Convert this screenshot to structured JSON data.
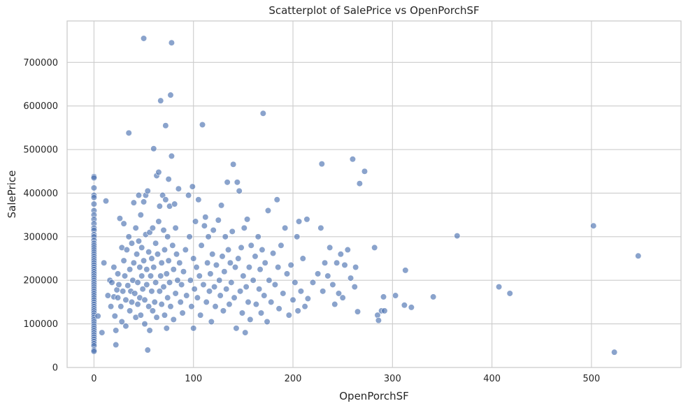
{
  "chart_data": {
    "type": "scatter",
    "title": "Scatterplot of SalePrice vs OpenPorchSF",
    "xlabel": "OpenPorchSF",
    "ylabel": "SalePrice",
    "xlim": [
      -27,
      590
    ],
    "ylim": [
      0,
      795000
    ],
    "xticks": [
      0,
      100,
      200,
      300,
      400,
      500
    ],
    "yticks": [
      0,
      100000,
      200000,
      300000,
      400000,
      500000,
      600000,
      700000
    ],
    "grid": true,
    "legend": "none",
    "color": "#4c72b0",
    "points": [
      [
        0,
        438000
      ],
      [
        0,
        435000
      ],
      [
        0,
        412000
      ],
      [
        0,
        395000
      ],
      [
        0,
        390000
      ],
      [
        0,
        375000
      ],
      [
        0,
        360000
      ],
      [
        0,
        350000
      ],
      [
        0,
        340000
      ],
      [
        0,
        330000
      ],
      [
        0,
        320000
      ],
      [
        0,
        315000
      ],
      [
        0,
        305000
      ],
      [
        0,
        300000
      ],
      [
        0,
        292000
      ],
      [
        0,
        285000
      ],
      [
        0,
        280000
      ],
      [
        0,
        275000
      ],
      [
        0,
        270000
      ],
      [
        0,
        265000
      ],
      [
        0,
        260000
      ],
      [
        0,
        255000
      ],
      [
        0,
        250000
      ],
      [
        0,
        245000
      ],
      [
        0,
        240000
      ],
      [
        0,
        235000
      ],
      [
        0,
        230000
      ],
      [
        0,
        225000
      ],
      [
        0,
        220000
      ],
      [
        0,
        215000
      ],
      [
        0,
        210000
      ],
      [
        0,
        205000
      ],
      [
        0,
        200000
      ],
      [
        0,
        195000
      ],
      [
        0,
        190000
      ],
      [
        0,
        185000
      ],
      [
        0,
        180000
      ],
      [
        0,
        175000
      ],
      [
        0,
        170000
      ],
      [
        0,
        165000
      ],
      [
        0,
        160000
      ],
      [
        0,
        155000
      ],
      [
        0,
        150000
      ],
      [
        0,
        145000
      ],
      [
        0,
        140000
      ],
      [
        0,
        135000
      ],
      [
        0,
        130000
      ],
      [
        0,
        125000
      ],
      [
        0,
        120000
      ],
      [
        0,
        115000
      ],
      [
        0,
        110000
      ],
      [
        0,
        105000
      ],
      [
        0,
        100000
      ],
      [
        0,
        95000
      ],
      [
        0,
        90000
      ],
      [
        0,
        85000
      ],
      [
        0,
        80000
      ],
      [
        0,
        75000
      ],
      [
        0,
        70000
      ],
      [
        0,
        65000
      ],
      [
        0,
        60000
      ],
      [
        0,
        55000
      ],
      [
        0,
        50000
      ],
      [
        0,
        40000
      ],
      [
        0,
        37000
      ],
      [
        4,
        118000
      ],
      [
        8,
        80000
      ],
      [
        10,
        240000
      ],
      [
        12,
        382000
      ],
      [
        14,
        165000
      ],
      [
        16,
        200000
      ],
      [
        17,
        140000
      ],
      [
        18,
        195000
      ],
      [
        20,
        162000
      ],
      [
        20,
        230000
      ],
      [
        21,
        118000
      ],
      [
        22,
        85000
      ],
      [
        22,
        52000
      ],
      [
        23,
        178000
      ],
      [
        24,
        160000
      ],
      [
        24,
        215000
      ],
      [
        25,
        190000
      ],
      [
        26,
        342000
      ],
      [
        27,
        140000
      ],
      [
        28,
        275000
      ],
      [
        28,
        105000
      ],
      [
        29,
        175000
      ],
      [
        30,
        330000
      ],
      [
        30,
        245000
      ],
      [
        31,
        210000
      ],
      [
        32,
        155000
      ],
      [
        32,
        95000
      ],
      [
        33,
        270000
      ],
      [
        34,
        188000
      ],
      [
        35,
        538000
      ],
      [
        35,
        300000
      ],
      [
        36,
        225000
      ],
      [
        36,
        130000
      ],
      [
        37,
        175000
      ],
      [
        38,
        285000
      ],
      [
        38,
        150000
      ],
      [
        39,
        200000
      ],
      [
        40,
        378000
      ],
      [
        40,
        240000
      ],
      [
        41,
        170000
      ],
      [
        42,
        320000
      ],
      [
        42,
        115000
      ],
      [
        43,
        260000
      ],
      [
        44,
        195000
      ],
      [
        44,
        145000
      ],
      [
        45,
        395000
      ],
      [
        45,
        290000
      ],
      [
        46,
        230000
      ],
      [
        46,
        160000
      ],
      [
        47,
        350000
      ],
      [
        47,
        120000
      ],
      [
        48,
        210000
      ],
      [
        48,
        275000
      ],
      [
        49,
        180000
      ],
      [
        50,
        755000
      ],
      [
        50,
        380000
      ],
      [
        50,
        245000
      ],
      [
        51,
        155000
      ],
      [
        51,
        100000
      ],
      [
        52,
        395000
      ],
      [
        52,
        305000
      ],
      [
        53,
        225000
      ],
      [
        53,
        190000
      ],
      [
        54,
        405000
      ],
      [
        54,
        40000
      ],
      [
        55,
        265000
      ],
      [
        55,
        140000
      ],
      [
        56,
        310000
      ],
      [
        56,
        85000
      ],
      [
        57,
        210000
      ],
      [
        58,
        250000
      ],
      [
        58,
        175000
      ],
      [
        59,
        320000
      ],
      [
        59,
        130000
      ],
      [
        60,
        502000
      ],
      [
        60,
        230000
      ],
      [
        61,
        150000
      ],
      [
        62,
        285000
      ],
      [
        62,
        195000
      ],
      [
        63,
        440000
      ],
      [
        63,
        115000
      ],
      [
        64,
        260000
      ],
      [
        65,
        448000
      ],
      [
        65,
        335000
      ],
      [
        66,
        175000
      ],
      [
        66,
        370000
      ],
      [
        67,
        612000
      ],
      [
        67,
        210000
      ],
      [
        68,
        240000
      ],
      [
        68,
        145000
      ],
      [
        69,
        395000
      ],
      [
        70,
        315000
      ],
      [
        70,
        185000
      ],
      [
        71,
        270000
      ],
      [
        71,
        120000
      ],
      [
        72,
        555000
      ],
      [
        72,
        385000
      ],
      [
        73,
        215000
      ],
      [
        73,
        90000
      ],
      [
        74,
        300000
      ],
      [
        74,
        160000
      ],
      [
        75,
        432000
      ],
      [
        75,
        245000
      ],
      [
        76,
        370000
      ],
      [
        76,
        195000
      ],
      [
        77,
        625000
      ],
      [
        77,
        140000
      ],
      [
        78,
        745000
      ],
      [
        78,
        485000
      ],
      [
        79,
        280000
      ],
      [
        80,
        225000
      ],
      [
        80,
        110000
      ],
      [
        81,
        375000
      ],
      [
        82,
        320000
      ],
      [
        82,
        170000
      ],
      [
        83,
        260000
      ],
      [
        84,
        200000
      ],
      [
        85,
        410000
      ],
      [
        86,
        240000
      ],
      [
        87,
        150000
      ],
      [
        88,
        190000
      ],
      [
        89,
        125000
      ],
      [
        90,
        220000
      ],
      [
        92,
        270000
      ],
      [
        93,
        165000
      ],
      [
        95,
        395000
      ],
      [
        96,
        300000
      ],
      [
        97,
        200000
      ],
      [
        98,
        140000
      ],
      [
        99,
        415000
      ],
      [
        100,
        250000
      ],
      [
        100,
        90000
      ],
      [
        101,
        180000
      ],
      [
        102,
        335000
      ],
      [
        103,
        230000
      ],
      [
        104,
        160000
      ],
      [
        105,
        385000
      ],
      [
        106,
        210000
      ],
      [
        107,
        120000
      ],
      [
        108,
        280000
      ],
      [
        109,
        557000
      ],
      [
        110,
        190000
      ],
      [
        111,
        325000
      ],
      [
        112,
        345000
      ],
      [
        113,
        150000
      ],
      [
        114,
        240000
      ],
      [
        115,
        300000
      ],
      [
        116,
        175000
      ],
      [
        117,
        215000
      ],
      [
        118,
        105000
      ],
      [
        119,
        260000
      ],
      [
        120,
        315000
      ],
      [
        121,
        185000
      ],
      [
        122,
        140000
      ],
      [
        123,
        235000
      ],
      [
        125,
        338000
      ],
      [
        126,
        200000
      ],
      [
        127,
        165000
      ],
      [
        128,
        372000
      ],
      [
        129,
        255000
      ],
      [
        130,
        130000
      ],
      [
        131,
        220000
      ],
      [
        132,
        300000
      ],
      [
        133,
        180000
      ],
      [
        134,
        425000
      ],
      [
        135,
        270000
      ],
      [
        136,
        145000
      ],
      [
        137,
        240000
      ],
      [
        138,
        195000
      ],
      [
        139,
        312000
      ],
      [
        140,
        466000
      ],
      [
        141,
        160000
      ],
      [
        142,
        230000
      ],
      [
        143,
        90000
      ],
      [
        144,
        425000
      ],
      [
        145,
        250000
      ],
      [
        146,
        405000
      ],
      [
        147,
        175000
      ],
      [
        148,
        275000
      ],
      [
        149,
        125000
      ],
      [
        150,
        210000
      ],
      [
        151,
        320000
      ],
      [
        152,
        80000
      ],
      [
        153,
        185000
      ],
      [
        154,
        340000
      ],
      [
        155,
        150000
      ],
      [
        156,
        230000
      ],
      [
        157,
        110000
      ],
      [
        158,
        280000
      ],
      [
        160,
        200000
      ],
      [
        162,
        255000
      ],
      [
        163,
        145000
      ],
      [
        165,
        300000
      ],
      [
        166,
        180000
      ],
      [
        167,
        225000
      ],
      [
        168,
        125000
      ],
      [
        169,
        270000
      ],
      [
        170,
        583000
      ],
      [
        171,
        165000
      ],
      [
        172,
        240000
      ],
      [
        174,
        105000
      ],
      [
        175,
        360000
      ],
      [
        176,
        200000
      ],
      [
        178,
        150000
      ],
      [
        180,
        262000
      ],
      [
        182,
        190000
      ],
      [
        184,
        385000
      ],
      [
        185,
        230000
      ],
      [
        186,
        135000
      ],
      [
        188,
        280000
      ],
      [
        190,
        170000
      ],
      [
        192,
        320000
      ],
      [
        194,
        215000
      ],
      [
        196,
        120000
      ],
      [
        198,
        235000
      ],
      [
        200,
        155000
      ],
      [
        202,
        195000
      ],
      [
        204,
        300000
      ],
      [
        205,
        130000
      ],
      [
        206,
        335000
      ],
      [
        208,
        175000
      ],
      [
        210,
        250000
      ],
      [
        212,
        140000
      ],
      [
        214,
        340000
      ],
      [
        215,
        158000
      ],
      [
        220,
        195000
      ],
      [
        225,
        215000
      ],
      [
        228,
        320000
      ],
      [
        229,
        467000
      ],
      [
        230,
        175000
      ],
      [
        232,
        240000
      ],
      [
        235,
        210000
      ],
      [
        237,
        275000
      ],
      [
        240,
        190000
      ],
      [
        242,
        145000
      ],
      [
        244,
        240000
      ],
      [
        246,
        170000
      ],
      [
        248,
        260000
      ],
      [
        250,
        160000
      ],
      [
        252,
        235000
      ],
      [
        255,
        270000
      ],
      [
        258,
        205000
      ],
      [
        260,
        478000
      ],
      [
        262,
        185000
      ],
      [
        263,
        230000
      ],
      [
        265,
        128000
      ],
      [
        267,
        422000
      ],
      [
        272,
        450000
      ],
      [
        282,
        275000
      ],
      [
        285,
        120000
      ],
      [
        286,
        108000
      ],
      [
        289,
        130000
      ],
      [
        291,
        162000
      ],
      [
        292,
        130000
      ],
      [
        303,
        165000
      ],
      [
        312,
        143000
      ],
      [
        313,
        223000
      ],
      [
        319,
        138000
      ],
      [
        341,
        162000
      ],
      [
        365,
        302000
      ],
      [
        407,
        185000
      ],
      [
        418,
        170000
      ],
      [
        502,
        325000
      ],
      [
        523,
        35000
      ],
      [
        547,
        256000
      ]
    ]
  }
}
